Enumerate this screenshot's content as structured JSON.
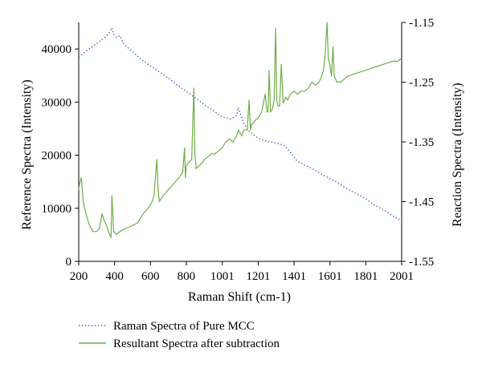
{
  "chart_data": {
    "type": "line",
    "title": "",
    "xlabel": "Raman Shift (cm-1)",
    "ylabel_left": "Reference Spectra (Intensity)",
    "ylabel_right": "Reaction Spectra (Intensity)",
    "xlim": [
      200,
      2001
    ],
    "ylim_left": [
      0,
      45000
    ],
    "ylim_right": [
      -1.55,
      -1.15
    ],
    "x_ticks": [
      200,
      400,
      600,
      800,
      1001,
      1201,
      1401,
      1601,
      1801,
      2001
    ],
    "y_ticks_left": [
      0,
      10000,
      20000,
      30000,
      40000
    ],
    "y_ticks_right": [
      -1.55,
      -1.45,
      -1.35,
      -1.25,
      -1.15
    ],
    "legend_position": "bottom-left",
    "grid": false,
    "series": [
      {
        "name": "Raman Spectra of Pure MCC",
        "axis": "left",
        "style": "dotted",
        "color": "#4472c4",
        "x": [
          200,
          250,
          300,
          350,
          370,
          385,
          395,
          410,
          430,
          450,
          500,
          550,
          600,
          650,
          700,
          750,
          800,
          850,
          900,
          950,
          1000,
          1050,
          1080,
          1090,
          1100,
          1120,
          1150,
          1200,
          1250,
          1300,
          1350,
          1380,
          1420,
          1450,
          1500,
          1550,
          1600,
          1650,
          1700,
          1750,
          1800,
          1850,
          1900,
          1950,
          2001
        ],
        "y": [
          38500,
          39800,
          41000,
          42300,
          43000,
          44000,
          42800,
          42200,
          42500,
          41000,
          39500,
          38000,
          36800,
          35700,
          34500,
          33200,
          32000,
          30800,
          29500,
          28400,
          27200,
          26800,
          27500,
          29000,
          28000,
          26000,
          24500,
          23200,
          22600,
          22300,
          21800,
          20500,
          18800,
          18300,
          17500,
          16500,
          15600,
          14700,
          13600,
          12700,
          11800,
          10600,
          9700,
          8600,
          7600
        ]
      },
      {
        "name": "Resultant Spectra after subtraction",
        "axis": "right",
        "style": "solid",
        "color": "#70ad47",
        "x": [
          200,
          205,
          215,
          225,
          240,
          260,
          280,
          300,
          315,
          330,
          340,
          355,
          365,
          380,
          385,
          395,
          410,
          430,
          460,
          500,
          530,
          560,
          590,
          610,
          620,
          630,
          636,
          642,
          650,
          670,
          700,
          730,
          760,
          780,
          790,
          795,
          800,
          810,
          830,
          842,
          848,
          855,
          870,
          890,
          900,
          920,
          940,
          960,
          980,
          1000,
          1020,
          1040,
          1060,
          1080,
          1090,
          1100,
          1110,
          1120,
          1140,
          1150,
          1158,
          1163,
          1170,
          1180,
          1200,
          1220,
          1240,
          1250,
          1256,
          1262,
          1270,
          1280,
          1290,
          1298,
          1305,
          1312,
          1320,
          1330,
          1340,
          1348,
          1355,
          1365,
          1380,
          1400,
          1420,
          1440,
          1460,
          1480,
          1500,
          1520,
          1540,
          1555,
          1565,
          1575,
          1585,
          1592,
          1600,
          1610,
          1618,
          1625,
          1640,
          1660,
          1700,
          1750,
          1800,
          1850,
          1900,
          1950,
          1980,
          2001
        ],
        "y": [
          -1.43,
          -1.42,
          -1.41,
          -1.45,
          -1.47,
          -1.49,
          -1.5,
          -1.5,
          -1.495,
          -1.47,
          -1.48,
          -1.49,
          -1.5,
          -1.51,
          -1.44,
          -1.5,
          -1.505,
          -1.5,
          -1.495,
          -1.49,
          -1.485,
          -1.47,
          -1.46,
          -1.45,
          -1.44,
          -1.4,
          -1.38,
          -1.43,
          -1.45,
          -1.44,
          -1.43,
          -1.42,
          -1.41,
          -1.4,
          -1.36,
          -1.41,
          -1.39,
          -1.385,
          -1.38,
          -1.26,
          -1.37,
          -1.395,
          -1.39,
          -1.385,
          -1.38,
          -1.375,
          -1.37,
          -1.37,
          -1.365,
          -1.36,
          -1.35,
          -1.345,
          -1.35,
          -1.34,
          -1.33,
          -1.335,
          -1.34,
          -1.33,
          -1.33,
          -1.28,
          -1.33,
          -1.32,
          -1.32,
          -1.315,
          -1.31,
          -1.3,
          -1.27,
          -1.3,
          -1.3,
          -1.23,
          -1.3,
          -1.295,
          -1.28,
          -1.16,
          -1.28,
          -1.29,
          -1.29,
          -1.22,
          -1.285,
          -1.28,
          -1.275,
          -1.28,
          -1.27,
          -1.265,
          -1.27,
          -1.265,
          -1.265,
          -1.26,
          -1.25,
          -1.255,
          -1.25,
          -1.24,
          -1.23,
          -1.2,
          -1.15,
          -1.21,
          -1.22,
          -1.24,
          -1.19,
          -1.24,
          -1.25,
          -1.25,
          -1.24,
          -1.235,
          -1.23,
          -1.225,
          -1.22,
          -1.215,
          -1.215,
          -1.21
        ]
      }
    ]
  }
}
